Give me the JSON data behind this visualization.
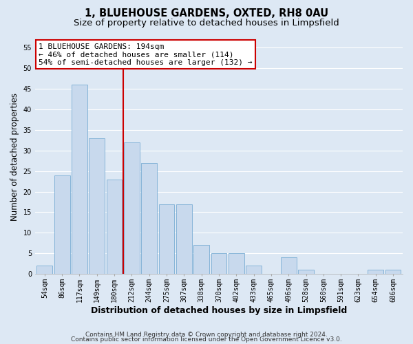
{
  "title": "1, BLUEHOUSE GARDENS, OXTED, RH8 0AU",
  "subtitle": "Size of property relative to detached houses in Limpsfield",
  "xlabel": "Distribution of detached houses by size in Limpsfield",
  "ylabel": "Number of detached properties",
  "bar_labels": [
    "54sqm",
    "86sqm",
    "117sqm",
    "149sqm",
    "180sqm",
    "212sqm",
    "244sqm",
    "275sqm",
    "307sqm",
    "338sqm",
    "370sqm",
    "402sqm",
    "433sqm",
    "465sqm",
    "496sqm",
    "528sqm",
    "560sqm",
    "591sqm",
    "623sqm",
    "654sqm",
    "686sqm"
  ],
  "bar_values": [
    2,
    24,
    46,
    33,
    23,
    32,
    27,
    17,
    17,
    7,
    5,
    5,
    2,
    0,
    4,
    1,
    0,
    0,
    0,
    1,
    1
  ],
  "bar_color": "#c8d9ed",
  "bar_edge_color": "#7aadd4",
  "property_line_x": 4.5,
  "annotation_line1": "1 BLUEHOUSE GARDENS: 194sqm",
  "annotation_line2": "← 46% of detached houses are smaller (114)",
  "annotation_line3": "54% of semi-detached houses are larger (132) →",
  "annotation_box_color": "#ffffff",
  "annotation_box_edge": "#cc0000",
  "vline_color": "#cc0000",
  "ylim": [
    0,
    57
  ],
  "yticks": [
    0,
    5,
    10,
    15,
    20,
    25,
    30,
    35,
    40,
    45,
    50,
    55
  ],
  "footer_line1": "Contains HM Land Registry data © Crown copyright and database right 2024.",
  "footer_line2": "Contains public sector information licensed under the Open Government Licence v3.0.",
  "bg_color": "#dde8f4",
  "plot_bg_color": "#dde8f4",
  "grid_color": "#ffffff",
  "title_fontsize": 10.5,
  "subtitle_fontsize": 9.5,
  "ylabel_fontsize": 8.5,
  "xlabel_fontsize": 9,
  "tick_fontsize": 7,
  "annotation_fontsize": 8,
  "footer_fontsize": 6.5
}
